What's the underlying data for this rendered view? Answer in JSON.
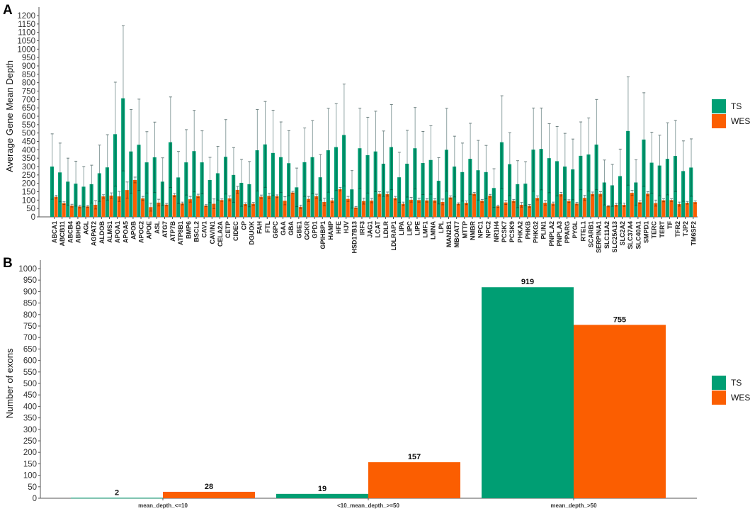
{
  "colors": {
    "TS": "#009E73",
    "WES": "#FB5E01",
    "error_bar": "#8fa3a3",
    "axis": "#555555"
  },
  "chart_data": [
    {
      "panel": "A",
      "type": "bar",
      "ylabel": "Average Gene Mean Depth",
      "xlabel": "",
      "ylim": [
        0,
        1200
      ],
      "ytick_step": 50,
      "grid": false,
      "legend": {
        "placement": "right",
        "entries": [
          "TS",
          "WES"
        ]
      },
      "error_bars": true,
      "categories": [
        "ABCA1",
        "ABCB11",
        "ABCB4",
        "ABHD5",
        "AGL",
        "AGPAT2",
        "ALDOB",
        "ALMS1",
        "APOA1",
        "APOA5",
        "APOB",
        "APOC2",
        "APOE",
        "ASL",
        "ATG7",
        "ATP7B",
        "ATP8B1",
        "BMP6",
        "BSCL2",
        "CAV1",
        "CAVIN1",
        "CELA2A",
        "CETP",
        "CIDEC",
        "CP",
        "DGUOK",
        "FAH",
        "FTL",
        "G6PC",
        "GAA",
        "GBA",
        "GBE1",
        "GCKR",
        "GPD1",
        "GPIHBP1",
        "HAMP",
        "HFE",
        "HJV",
        "HSD17B13",
        "IRF3",
        "JAG1",
        "LCAT",
        "LDLR",
        "LDLRAP1",
        "LIPA",
        "LIPC",
        "LIPE",
        "LMF1",
        "LMNA",
        "LPL",
        "MAN2B1",
        "MBOAT7",
        "MTTP",
        "NMBR",
        "NPC1",
        "NPC2",
        "NR1H4",
        "PCSK7",
        "PCSK9",
        "PHKA2",
        "PHKB",
        "PHKG2",
        "PLIN1",
        "PNPLA2",
        "PNPLA3",
        "PPARG",
        "PYGL",
        "RTEL1",
        "SCARB1",
        "SERPINA1",
        "SLC11A2",
        "SLC25A13",
        "SLC2A2",
        "SLC37A4",
        "SLC40A1",
        "SMPD1",
        "TERC",
        "TERT",
        "TF",
        "TFR2",
        "TJP2",
        "TM6SF2"
      ],
      "series": [
        {
          "name": "TS",
          "values": [
            300,
            265,
            210,
            198,
            180,
            195,
            260,
            295,
            493,
            707,
            390,
            430,
            325,
            355,
            210,
            445,
            235,
            325,
            392,
            325,
            220,
            260,
            358,
            250,
            203,
            195,
            397,
            432,
            381,
            356,
            320,
            176,
            326,
            356,
            236,
            397,
            416,
            488,
            164,
            409,
            368,
            390,
            317,
            416,
            236,
            317,
            409,
            321,
            339,
            215,
            400,
            300,
            267,
            346,
            278,
            267,
            172,
            445,
            314,
            195,
            198,
            401,
            405,
            350,
            332,
            300,
            283,
            364,
            372,
            431,
            205,
            188,
            243,
            512,
            205,
            461,
            323,
            306,
            346,
            363,
            273,
            294
          ],
          "error_upper": [
            495,
            440,
            350,
            332,
            300,
            308,
            428,
            490,
            803,
            1140,
            640,
            702,
            508,
            565,
            352,
            715,
            390,
            520,
            635,
            513,
            355,
            420,
            580,
            413,
            343,
            330,
            640,
            688,
            636,
            566,
            514,
            291,
            530,
            574,
            372,
            647,
            675,
            792,
            276,
            648,
            594,
            630,
            512,
            670,
            385,
            516,
            652,
            509,
            543,
            353,
            647,
            481,
            440,
            558,
            456,
            426,
            287,
            722,
            502,
            335,
            329,
            649,
            649,
            556,
            539,
            498,
            464,
            566,
            590,
            700,
            339,
            313,
            404,
            835,
            340,
            740,
            505,
            487,
            561,
            575,
            453,
            465
          ]
        },
        {
          "name": "WES",
          "values": [
            120,
            82,
            67,
            62,
            62,
            72,
            122,
            127,
            122,
            160,
            220,
            110,
            58,
            85,
            73,
            130,
            80,
            105,
            125,
            67,
            78,
            100,
            110,
            161,
            76,
            78,
            120,
            125,
            123,
            96,
            145,
            60,
            107,
            123,
            89,
            98,
            165,
            107,
            56,
            94,
            97,
            137,
            136,
            112,
            78,
            102,
            100,
            98,
            98,
            89,
            116,
            78,
            84,
            138,
            96,
            126,
            63,
            86,
            96,
            72,
            66,
            113,
            84,
            79,
            135,
            94,
            79,
            113,
            137,
            137,
            64,
            72,
            72,
            143,
            87,
            138,
            82,
            99,
            100,
            76,
            84,
            88
          ],
          "error_upper": [
            128,
            90,
            75,
            70,
            68,
            97,
            132,
            143,
            152,
            208,
            237,
            122,
            82,
            105,
            80,
            140,
            88,
            122,
            135,
            73,
            107,
            107,
            125,
            182,
            84,
            86,
            130,
            140,
            131,
            120,
            152,
            70,
            122,
            135,
            112,
            110,
            175,
            122,
            62,
            112,
            110,
            150,
            148,
            122,
            88,
            116,
            112,
            108,
            108,
            106,
            125,
            84,
            95,
            146,
            104,
            134,
            70,
            98,
            104,
            86,
            74,
            125,
            98,
            88,
            146,
            102,
            86,
            128,
            148,
            150,
            68,
            80,
            82,
            158,
            96,
            150,
            100,
            108,
            108,
            88,
            92,
            95
          ]
        }
      ]
    },
    {
      "panel": "B",
      "type": "bar",
      "ylabel": "Number of exons",
      "xlabel": "",
      "ylim": [
        0,
        1000
      ],
      "ytick_step": 50,
      "grid": false,
      "legend": {
        "placement": "right",
        "entries": [
          "TS",
          "WES"
        ]
      },
      "categories": [
        "mean_depth_<=10",
        "<10_mean_depth_>=50",
        "mean_depth_>50"
      ],
      "series": [
        {
          "name": "TS",
          "values": [
            2,
            19,
            919
          ]
        },
        {
          "name": "WES",
          "values": [
            28,
            157,
            755
          ]
        }
      ],
      "data_labels": true
    }
  ]
}
